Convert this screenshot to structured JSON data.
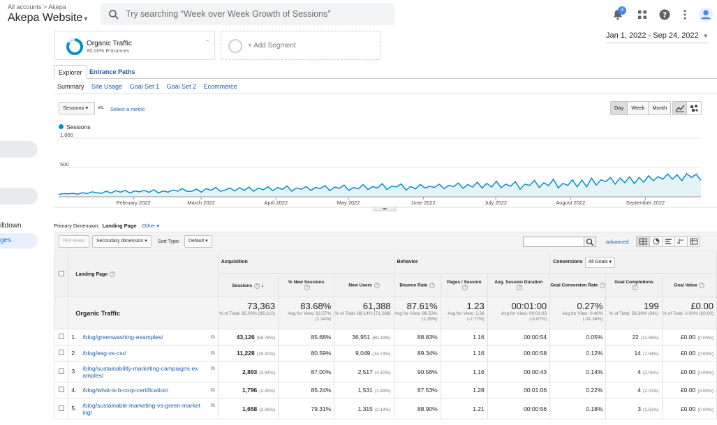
{
  "header": {
    "breadcrumb": "All accounts > Akepa",
    "property": "Akepa Website",
    "search_placeholder": "Try searching “Week over Week Growth of Sessions”",
    "notification_count": "3"
  },
  "sidebar": {
    "drilldown_label": "illdown",
    "pages_label": "ges"
  },
  "segments": {
    "active_name": "Organic Traffic",
    "active_sub": "85.00% Entrances",
    "add_label": "+ Add Segment"
  },
  "date_range": "Jan 1, 2022 - Sep 24, 2022",
  "tabs": [
    "Explorer",
    "Entrance Paths"
  ],
  "subtabs": [
    "Summary",
    "Site Usage",
    "Goal Set 1",
    "Goal Set 2",
    "Ecommerce"
  ],
  "chart_controls": {
    "metric": "Sessions",
    "vs": "vs.",
    "select_metric": "Select a metric",
    "periods": [
      "Day",
      "Week",
      "Month"
    ]
  },
  "chart_data": {
    "type": "line",
    "series": [
      {
        "name": "Sessions",
        "color": "#058dc7",
        "values": [
          40,
          55,
          50,
          60,
          45,
          70,
          55,
          85,
          70,
          60,
          95,
          65,
          105,
          80,
          110,
          65,
          100,
          85,
          110,
          75,
          120,
          65,
          100,
          80,
          115,
          95,
          140,
          90,
          95,
          130,
          80,
          140,
          110,
          160,
          95,
          115,
          150,
          100,
          155,
          110,
          165,
          95,
          150,
          120,
          170,
          105,
          160,
          125,
          185,
          95,
          150,
          130,
          175,
          110,
          160,
          140,
          190,
          105,
          165,
          145,
          200,
          110,
          160,
          135,
          210,
          125,
          175,
          150,
          225,
          125,
          180,
          170,
          220,
          115,
          175,
          135,
          210,
          150,
          180,
          160,
          215,
          140,
          195,
          175,
          235,
          145,
          210,
          165,
          250,
          150,
          230,
          165,
          265,
          155,
          215,
          180,
          260,
          130,
          215,
          195,
          280,
          160,
          240,
          190,
          300,
          150,
          230,
          195,
          290,
          170,
          285,
          170,
          320,
          200,
          290,
          260,
          330,
          215,
          320,
          240,
          340,
          225,
          330,
          250,
          360,
          275,
          345,
          300,
          390,
          300,
          375,
          275,
          395,
          330,
          385,
          280
        ]
      }
    ],
    "x_start": "2022-01-01",
    "x_end": "2022-09-24",
    "x_ticks": [
      "February 2022",
      "March 2022",
      "April 2022",
      "May 2022",
      "June 2022",
      "July 2022",
      "August 2022",
      "September 2022"
    ],
    "y_ticks": [
      "1,000",
      "500"
    ],
    "ylim": [
      0,
      1000
    ],
    "legend_position": "top-left"
  },
  "dimension": {
    "label": "Primary Dimension:",
    "value": "Landing Page",
    "other": "Other"
  },
  "controls": {
    "plot_rows": "Plot Rows",
    "secondary": "Secondary dimension",
    "sort_type_label": "Sort Type:",
    "sort_type": "Default",
    "advanced": "advanced"
  },
  "table": {
    "groups": {
      "acquisition": "Acquisition",
      "behavior": "Behavior",
      "conversions": "Conversions",
      "goal_select": "All Goals"
    },
    "columns": {
      "landing_page": "Landing Page",
      "sessions": "Sessions",
      "new_sessions": "% New Sessions",
      "new_users": "New Users",
      "bounce": "Bounce Rate",
      "pps": "Pages / Session",
      "duration": "Avg. Session Duration",
      "gcr": "Goal Conversion Rate",
      "gcomp": "Goal Completions",
      "gval": "Goal Value"
    },
    "totals": {
      "label": "Organic Traffic",
      "sessions": "73,363",
      "sessions_sub": "% of Total: 85.00% (86,310)",
      "new_sessions": "83.68%",
      "new_sessions_sub": "Avg for View: 82.57% (1.34%)",
      "new_users": "61,388",
      "new_users_sub": "% of Total: 86.14% (71,268)",
      "bounce": "87.61%",
      "bounce_sub": "Avg for View: 86.53% (1.25%)",
      "pps": "1.23",
      "pps_sub": "Avg for View: 1.26 (-2.77%)",
      "duration": "00:01:00",
      "duration_sub": "Avg for View: 00:01:03 (-5.87%)",
      "gcr": "0.27%",
      "gcr_sub": "Avg for View: 0.40% (-31.34%)",
      "gcomp": "199",
      "gcomp_sub": "% of Total: 58.36% (341)",
      "gval": "£0.00",
      "gval_sub": "% of Total: 0.00% (£0.00)"
    },
    "rows": [
      {
        "n": "1.",
        "page": "/blog/greenwashing-examples/",
        "sessions": "43,126",
        "sp": "(58.78%)",
        "ns": "85.68%",
        "nu": "36,951",
        "np": "(60.19%)",
        "br": "88.83%",
        "pps": "1.16",
        "dur": "00:00:54",
        "gcr": "0.05%",
        "gc": "22",
        "gcp": "(11.06%)",
        "gv": "£0.00",
        "gvp": "(0.00%)"
      },
      {
        "n": "2.",
        "page": "/blog/esg-vs-csr/",
        "sessions": "11,228",
        "sp": "(15.30%)",
        "ns": "80.59%",
        "nu": "9,049",
        "np": "(14.74%)",
        "br": "89.34%",
        "pps": "1.16",
        "dur": "00:00:58",
        "gcr": "0.12%",
        "gc": "14",
        "gcp": "(7.04%)",
        "gv": "£0.00",
        "gvp": "(0.00%)"
      },
      {
        "n": "3.",
        "page": "/blog/sustainability-marketing-campaigns-examples/",
        "sessions": "2,893",
        "sp": "(3.94%)",
        "ns": "87.00%",
        "nu": "2,517",
        "np": "(4.10%)",
        "br": "90.56%",
        "pps": "1.16",
        "dur": "00:00:43",
        "gcr": "0.14%",
        "gc": "4",
        "gcp": "(2.01%)",
        "gv": "£0.00",
        "gvp": "(0.00%)"
      },
      {
        "n": "4.",
        "page": "/blog/what-is-b-corp-certification/",
        "sessions": "1,796",
        "sp": "(2.45%)",
        "ns": "85.24%",
        "nu": "1,531",
        "np": "(2.49%)",
        "br": "87.53%",
        "pps": "1.28",
        "dur": "00:01:06",
        "gcr": "0.22%",
        "gc": "4",
        "gcp": "(2.01%)",
        "gv": "£0.00",
        "gvp": "(0.00%)"
      },
      {
        "n": "5.",
        "page": "/blog/sustainable-marketing-vs-green-marketing/",
        "sessions": "1,658",
        "sp": "(2.26%)",
        "ns": "79.31%",
        "nu": "1,315",
        "np": "(2.14%)",
        "br": "88.90%",
        "pps": "1.21",
        "dur": "00:00:56",
        "gcr": "0.18%",
        "gc": "3",
        "gcp": "(1.51%)",
        "gv": "£0.00",
        "gvp": "(0.00%)"
      }
    ]
  }
}
